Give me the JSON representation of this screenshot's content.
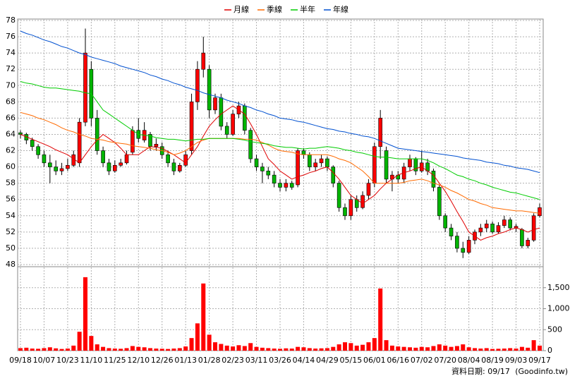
{
  "chart_data": [
    {
      "type": "candlestick",
      "categories": [
        "09/18",
        null,
        null,
        null,
        "10/07",
        null,
        null,
        null,
        "10/23",
        null,
        null,
        null,
        "11/10",
        null,
        null,
        null,
        "11/25",
        null,
        null,
        null,
        "12/10",
        null,
        null,
        null,
        "12/26",
        null,
        null,
        null,
        "01/13",
        null,
        null,
        null,
        "01/28",
        null,
        null,
        null,
        "02/23",
        null,
        null,
        null,
        "03/11",
        null,
        null,
        null,
        "03/26",
        null,
        null,
        null,
        "04/14",
        null,
        null,
        null,
        "04/29",
        null,
        null,
        null,
        "05/15",
        null,
        null,
        null,
        "06/01",
        null,
        null,
        null,
        "06/16",
        null,
        null,
        null,
        "07/02",
        null,
        null,
        null,
        "07/20",
        null,
        null,
        null,
        "08/04",
        null,
        null,
        null,
        "08/19",
        null,
        null,
        null,
        "09/03",
        null,
        null,
        null,
        "09/17"
      ],
      "open": [
        64.2,
        64,
        63.3,
        62.5,
        61.5,
        60.5,
        60,
        59.5,
        59.8,
        60.2,
        60.5,
        65.5,
        72,
        66,
        62,
        60.5,
        59.5,
        60.2,
        60.5,
        61.8,
        64.5,
        63.3,
        64,
        62.5,
        62.5,
        61.5,
        60.5,
        59.5,
        60.2,
        62,
        68,
        72,
        72,
        67,
        68.5,
        65,
        64,
        66.5,
        67.5,
        64.5,
        61,
        60,
        59.5,
        59,
        58,
        57.5,
        58,
        57.8,
        62,
        61.5,
        60,
        60.5,
        61,
        60,
        58,
        55,
        54,
        56,
        55,
        56.5,
        58,
        62.5,
        62,
        58.5,
        59,
        58.5,
        60,
        61,
        59.5,
        60.5,
        59.5,
        57.5,
        54,
        52.5,
        51.5,
        50,
        49.5,
        51,
        52,
        52.5,
        53,
        52,
        52.8,
        53.5,
        52.5,
        52.3,
        50.3,
        51,
        54
      ],
      "high": [
        64.5,
        64.2,
        63.6,
        62.8,
        62,
        61.5,
        60.8,
        60.5,
        61,
        62,
        66,
        77,
        73,
        67,
        62.5,
        61,
        60.8,
        61,
        62,
        65,
        66,
        65.5,
        64.3,
        63.5,
        63,
        62,
        61,
        60.5,
        62,
        69,
        73,
        76,
        72.5,
        69,
        69,
        65.5,
        67,
        68,
        67.8,
        64.8,
        61.5,
        60.5,
        60,
        59.5,
        58.5,
        58.5,
        58.3,
        62.3,
        62.3,
        61.8,
        61,
        61.5,
        61.3,
        60.2,
        58.3,
        55.5,
        56.5,
        56.5,
        57,
        58.5,
        63,
        67,
        62.5,
        59.5,
        59.5,
        60.5,
        61.5,
        61.2,
        62,
        61,
        59.8,
        57.8,
        54.3,
        53,
        52,
        50.8,
        51.5,
        52.3,
        53,
        53.5,
        53.3,
        53.2,
        54,
        53.8,
        53,
        52.5,
        51.3,
        54.3,
        55.5
      ],
      "low": [
        63.5,
        62.8,
        62,
        61,
        60,
        58,
        59,
        59,
        59.5,
        60,
        60,
        65,
        65,
        61.5,
        60,
        59,
        59.3,
        60,
        60.3,
        61.5,
        63,
        63,
        62,
        62,
        61,
        60,
        59,
        59.3,
        60,
        61.5,
        67,
        71,
        66,
        66.5,
        64.5,
        63.5,
        63.8,
        66,
        64,
        60.5,
        59.5,
        58,
        58.5,
        57.5,
        57,
        57,
        57.2,
        57.5,
        61,
        59.5,
        59.5,
        60,
        59.5,
        57.5,
        54.5,
        53.5,
        53.5,
        54.5,
        54.8,
        56,
        57.5,
        61,
        58,
        57,
        58,
        58,
        59.5,
        59,
        59.3,
        59,
        57,
        53.5,
        52,
        51,
        49.5,
        48.8,
        49.3,
        50.5,
        51.5,
        52,
        51.8,
        51.8,
        52.5,
        52.2,
        52,
        50,
        50,
        50.8,
        53.8
      ],
      "close": [
        64,
        63.3,
        62.5,
        61.5,
        60.5,
        60,
        59.5,
        59.8,
        60.2,
        61.5,
        65.5,
        74,
        66,
        62,
        60.5,
        59.5,
        60.2,
        60.5,
        61.5,
        64.5,
        63.5,
        64.5,
        62.5,
        62.8,
        61.5,
        60.5,
        59.5,
        60.2,
        61.5,
        68,
        72,
        74,
        67,
        68.5,
        65,
        64,
        66.5,
        67.5,
        64.5,
        61,
        60,
        59.5,
        59,
        58,
        57.5,
        58,
        57.5,
        62,
        61.5,
        60,
        60.5,
        61,
        60,
        58,
        55,
        54,
        56,
        55,
        56.5,
        58,
        62.5,
        66,
        58.5,
        59,
        58.5,
        60,
        61,
        59.5,
        60.5,
        59.5,
        57.5,
        54,
        52.5,
        51.5,
        50,
        49.5,
        51,
        52,
        52.5,
        53,
        52,
        52.8,
        53.5,
        52.5,
        52.7,
        50.3,
        51,
        54,
        55
      ],
      "up_color": "#ff0000",
      "down_color": "#00b400",
      "series": [
        {
          "name": "月線",
          "color": "#e00000",
          "values": [
            64,
            63.7,
            63.4,
            63.1,
            62.8,
            62.5,
            62.1,
            61.8,
            61.5,
            61,
            60.5,
            61.5,
            62.5,
            63.3,
            64,
            63.5,
            63,
            62.3,
            61.5,
            61.5,
            61.5,
            62,
            62.5,
            62.4,
            62.3,
            61.9,
            61.5,
            61,
            60.5,
            61.5,
            62.5,
            63.8,
            65,
            65.8,
            66.5,
            67,
            67.5,
            67,
            66.5,
            65.3,
            64,
            62.5,
            61,
            60.3,
            59.5,
            59,
            58.5,
            58.8,
            59,
            59.3,
            59.5,
            59.8,
            60,
            59.3,
            58.5,
            57.5,
            56.5,
            56,
            55.5,
            56,
            56.5,
            57.3,
            58,
            58.5,
            59,
            59.3,
            59.5,
            59.8,
            60,
            59.5,
            59,
            58,
            57,
            55.8,
            54.5,
            53.3,
            52,
            51.5,
            51,
            51.3,
            51.5,
            51.8,
            52,
            52.3,
            52.5,
            52.3,
            52,
            52.3,
            52.5
          ]
        },
        {
          "name": "季線",
          "color": "#ff6a00",
          "values": [
            66.7,
            66.5,
            66.3,
            66,
            65.8,
            65.5,
            65.2,
            64.8,
            64.5,
            64.3,
            64,
            63.8,
            63.5,
            63.4,
            63.3,
            63.1,
            63,
            62.9,
            62.8,
            62.6,
            62.5,
            62.4,
            62.3,
            62.1,
            62,
            61.8,
            61.5,
            61.7,
            62,
            62.5,
            63,
            63.3,
            63.5,
            63.5,
            63.5,
            63.5,
            63.5,
            63.5,
            63.4,
            63.4,
            63.3,
            63,
            62.7,
            62.3,
            62,
            61.9,
            61.8,
            61.6,
            61.5,
            61.5,
            61.5,
            61.5,
            61.5,
            61.3,
            61,
            60.8,
            60.5,
            60,
            59.5,
            58.8,
            58,
            58,
            58,
            58,
            58,
            58.1,
            58.3,
            58.4,
            58.5,
            58.3,
            58,
            57.8,
            57.5,
            57.1,
            56.8,
            56.4,
            56,
            55.8,
            55.5,
            55.3,
            55,
            54.9,
            54.8,
            54.7,
            54.6,
            54.6,
            54.5,
            54.4,
            54.3
          ]
        },
        {
          "name": "半年",
          "color": "#00cc00",
          "values": [
            70.5,
            70.3,
            70.2,
            70,
            69.8,
            69.7,
            69.7,
            69.6,
            69.5,
            69.4,
            69.3,
            69.1,
            69,
            68,
            67,
            66.5,
            66,
            65.5,
            65,
            64.5,
            64,
            63.9,
            63.8,
            63.6,
            63.5,
            63.4,
            63.4,
            63.3,
            63.2,
            63.3,
            63.4,
            63.4,
            63.5,
            63.5,
            63.5,
            63.5,
            63.5,
            63.4,
            63.3,
            63.1,
            63,
            62.9,
            62.8,
            62.6,
            62.5,
            62.4,
            62.4,
            62.3,
            62.2,
            62.3,
            62.3,
            62.4,
            62.5,
            62.4,
            62.3,
            62.1,
            62,
            61.8,
            61.7,
            61.5,
            61.3,
            61.2,
            61.2,
            61.1,
            61,
            61,
            61,
            61,
            61,
            60.8,
            60.5,
            60.1,
            59.8,
            59.4,
            59,
            58.8,
            58.5,
            58.3,
            58,
            57.8,
            57.5,
            57.3,
            57.1,
            56.9,
            56.8,
            56.6,
            56.4,
            56.2,
            56
          ]
        },
        {
          "name": "年線",
          "color": "#0050d0",
          "values": [
            76.7,
            76.4,
            76.2,
            75.9,
            75.6,
            75.4,
            75.1,
            74.8,
            74.6,
            74.3,
            74,
            73.8,
            73.5,
            73.3,
            73.1,
            72.9,
            72.7,
            72.4,
            72.2,
            72,
            71.8,
            71.6,
            71.3,
            71.1,
            70.8,
            70.6,
            70.3,
            70.1,
            69.8,
            69.6,
            69.4,
            69.1,
            68.9,
            68.7,
            68.5,
            68.2,
            68,
            67.8,
            67.5,
            67.3,
            67,
            66.8,
            66.5,
            66.3,
            66,
            65.9,
            65.8,
            65.6,
            65.5,
            65.3,
            65.1,
            64.9,
            64.7,
            64.6,
            64.4,
            64.3,
            64.1,
            64,
            63.8,
            63.7,
            63.5,
            63.2,
            62.9,
            62.6,
            62.3,
            62.2,
            62.1,
            62,
            61.9,
            61.8,
            61.7,
            61.6,
            61.5,
            61.4,
            61.3,
            61.1,
            61,
            60.9,
            60.8,
            60.6,
            60.5,
            60.4,
            60.2,
            60.1,
            59.9,
            59.8,
            59.7,
            59.5,
            59.3
          ]
        }
      ],
      "ylim": [
        48,
        78
      ],
      "yticks": [
        48,
        50,
        52,
        54,
        56,
        58,
        60,
        62,
        64,
        66,
        68,
        70,
        72,
        74,
        76,
        78
      ],
      "grid": true
    },
    {
      "type": "bar",
      "values": [
        60,
        70,
        50,
        45,
        60,
        80,
        55,
        40,
        50,
        120,
        450,
        1750,
        350,
        150,
        90,
        60,
        50,
        45,
        60,
        110,
        90,
        80,
        60,
        50,
        45,
        40,
        50,
        60,
        100,
        300,
        650,
        1600,
        380,
        200,
        160,
        120,
        100,
        130,
        110,
        180,
        90,
        70,
        60,
        50,
        45,
        55,
        50,
        90,
        80,
        60,
        50,
        55,
        60,
        90,
        150,
        200,
        180,
        120,
        140,
        200,
        300,
        1480,
        250,
        120,
        100,
        90,
        80,
        70,
        90,
        80,
        110,
        150,
        120,
        90,
        110,
        150,
        80,
        60,
        50,
        60,
        40,
        45,
        50,
        60,
        50,
        90,
        70,
        250,
        120
      ],
      "color": "#ff0000",
      "ylim": [
        0,
        2000
      ],
      "yticks": [
        0,
        500,
        {
          "value": 1000,
          "label": "1,000"
        },
        {
          "value": 1500,
          "label": "1,500"
        }
      ],
      "grid": true
    }
  ],
  "date_note": "資料日期: 09/17",
  "source": "(Goodinfo.tw)"
}
